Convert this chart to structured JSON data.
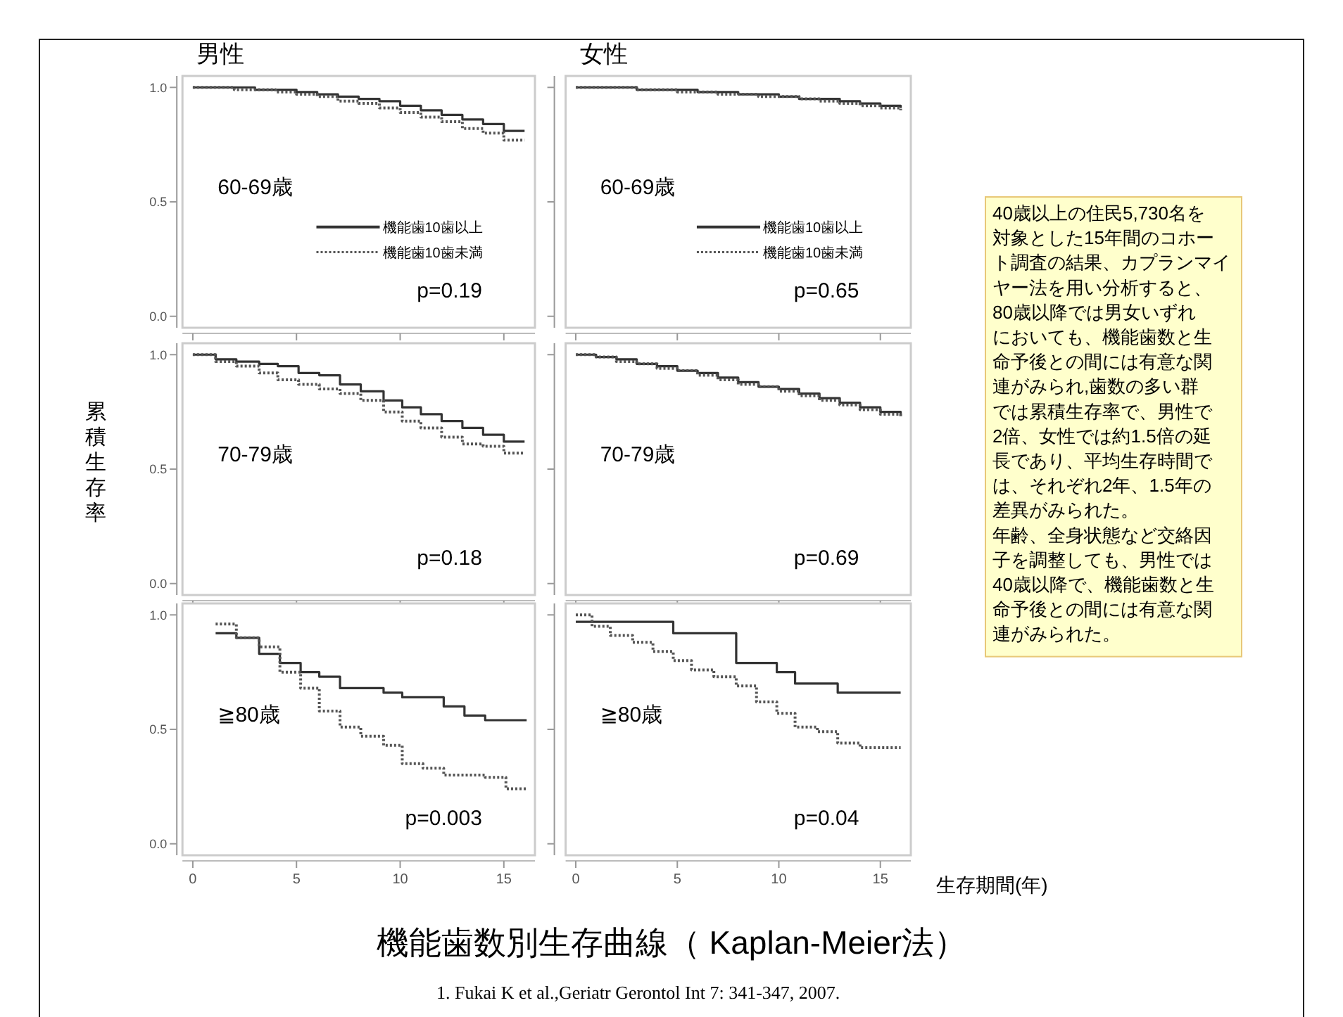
{
  "chart_data": [
    {
      "type": "step",
      "title": "男性",
      "xlim": [
        -0.5,
        16.5
      ],
      "ylim": [
        -0.05,
        1.05
      ],
      "xticks": [
        0,
        5,
        10,
        15
      ],
      "yticks": [
        {
          "value": 0,
          "label": "0.0"
        },
        {
          "value": 0.5,
          "label": "0.5"
        },
        {
          "value": 1,
          "label": "1.0"
        }
      ],
      "tick_labels": "y",
      "legend": "right",
      "annotations": [
        "60-69歳",
        "p=0.19"
      ],
      "series": [
        {
          "name": "機能歯10歯以上",
          "color": "#333333",
          "line_style": "solid",
          "x": [
            0,
            1,
            2,
            3,
            4,
            5,
            6,
            7,
            8,
            9,
            10,
            11,
            12,
            13,
            14,
            15,
            16
          ],
          "values": [
            1,
            1,
            1,
            0.99,
            0.99,
            0.98,
            0.97,
            0.96,
            0.95,
            0.94,
            0.92,
            0.9,
            0.88,
            0.86,
            0.84,
            0.81,
            0.81
          ]
        },
        {
          "name": "機能歯10歯未満",
          "color": "#555555",
          "line_style": "dotted",
          "x": [
            0,
            1,
            2,
            3,
            4,
            5,
            6,
            7,
            8,
            9,
            10,
            11,
            12,
            13,
            14,
            15,
            16
          ],
          "values": [
            1,
            1,
            0.99,
            0.99,
            0.98,
            0.97,
            0.96,
            0.94,
            0.93,
            0.91,
            0.89,
            0.87,
            0.85,
            0.82,
            0.8,
            0.77,
            0.77
          ]
        }
      ]
    },
    {
      "type": "step",
      "title": "女性",
      "xlim": [
        -0.5,
        16.5
      ],
      "ylim": [
        -0.05,
        1.05
      ],
      "xticks": [
        0,
        5,
        10,
        15
      ],
      "yticks": [
        0,
        0.5,
        1
      ],
      "tick_labels": false,
      "legend": "right",
      "annotations": [
        "60-69歳",
        "p=0.65"
      ],
      "series": [
        {
          "name": "機能歯10歯以上",
          "color": "#333333",
          "line_style": "solid",
          "x": [
            0,
            1,
            2,
            3,
            4,
            5,
            6,
            7,
            8,
            9,
            10,
            11,
            12,
            13,
            14,
            15,
            16
          ],
          "values": [
            1,
            1,
            1,
            0.99,
            0.99,
            0.99,
            0.98,
            0.98,
            0.97,
            0.97,
            0.96,
            0.95,
            0.95,
            0.94,
            0.93,
            0.92,
            0.91
          ]
        },
        {
          "name": "機能歯10歯未満",
          "color": "#555555",
          "line_style": "dotted",
          "x": [
            0,
            1,
            2,
            3,
            4,
            5,
            6,
            7,
            8,
            9,
            10,
            11,
            12,
            13,
            14,
            15,
            16
          ],
          "values": [
            1,
            1,
            1,
            0.99,
            0.99,
            0.98,
            0.98,
            0.97,
            0.97,
            0.96,
            0.96,
            0.95,
            0.94,
            0.93,
            0.92,
            0.91,
            0.9
          ]
        }
      ]
    },
    {
      "type": "step",
      "ylabel": "累積生存率",
      "xlim": [
        -0.5,
        16.5
      ],
      "ylim": [
        -0.05,
        1.05
      ],
      "xticks": [
        0,
        5,
        10,
        15
      ],
      "yticks": [
        {
          "value": 0,
          "label": "0.0"
        },
        {
          "value": 0.5,
          "label": "0.5"
        },
        {
          "value": 1,
          "label": "1.0"
        }
      ],
      "tick_labels": "y",
      "annotations": [
        "70-79歳",
        "p=0.18"
      ],
      "series": [
        {
          "color": "#333333",
          "line_style": "solid",
          "x": [
            0,
            1.1,
            2.1,
            3.2,
            4.1,
            5.1,
            6.1,
            7.1,
            8.1,
            9.2,
            10.1,
            11,
            12,
            13,
            14,
            15,
            16
          ],
          "values": [
            1,
            0.98,
            0.97,
            0.96,
            0.95,
            0.92,
            0.91,
            0.87,
            0.84,
            0.8,
            0.77,
            0.74,
            0.71,
            0.68,
            0.65,
            0.62,
            0.62
          ]
        },
        {
          "color": "#555555",
          "line_style": "dotted",
          "x": [
            0,
            1.1,
            2.1,
            3.2,
            4.1,
            5.1,
            6.1,
            7.1,
            8.1,
            9.2,
            10.1,
            11,
            12,
            13,
            14,
            15,
            16
          ],
          "values": [
            1,
            0.97,
            0.95,
            0.92,
            0.89,
            0.87,
            0.85,
            0.83,
            0.8,
            0.75,
            0.71,
            0.68,
            0.64,
            0.61,
            0.6,
            0.57,
            0.57
          ]
        }
      ]
    },
    {
      "type": "step",
      "xlim": [
        -0.5,
        16.5
      ],
      "ylim": [
        -0.05,
        1.05
      ],
      "xticks": [
        0,
        5,
        10,
        15
      ],
      "yticks": [
        0,
        0.5,
        1
      ],
      "tick_labels": false,
      "annotations": [
        "70-79歳",
        "p=0.69"
      ],
      "series": [
        {
          "color": "#333333",
          "line_style": "solid",
          "x": [
            0,
            1,
            2,
            3,
            4,
            5,
            6,
            7,
            8,
            9,
            10,
            11,
            12,
            13,
            14,
            15,
            16
          ],
          "values": [
            1,
            0.99,
            0.98,
            0.96,
            0.95,
            0.93,
            0.92,
            0.9,
            0.88,
            0.86,
            0.85,
            0.83,
            0.81,
            0.79,
            0.77,
            0.75,
            0.74
          ]
        },
        {
          "color": "#555555",
          "line_style": "dotted",
          "x": [
            0,
            1,
            2,
            3,
            4,
            5,
            6,
            7,
            8,
            9,
            10,
            11,
            12,
            13,
            14,
            15,
            16
          ],
          "values": [
            1,
            0.99,
            0.97,
            0.96,
            0.94,
            0.93,
            0.91,
            0.89,
            0.87,
            0.86,
            0.84,
            0.82,
            0.8,
            0.78,
            0.76,
            0.74,
            0.73
          ]
        }
      ]
    },
    {
      "type": "step",
      "xlim": [
        -0.5,
        16.5
      ],
      "ylim": [
        -0.05,
        1.05
      ],
      "xticks": [
        0,
        5,
        10,
        15
      ],
      "yticks": [
        {
          "value": 0,
          "label": "0.0"
        },
        {
          "value": 0.5,
          "label": "0.5"
        },
        {
          "value": 1,
          "label": "1.0"
        }
      ],
      "annotations": [
        "≧80歳",
        "p=0.003"
      ],
      "series": [
        {
          "color": "#333333",
          "line_style": "solid",
          "x": [
            1.1,
            2.1,
            3.2,
            4.2,
            5.2,
            6.1,
            7.1,
            9.2,
            10.1,
            12.1,
            13.1,
            14.1,
            16.1
          ],
          "values": [
            0.92,
            0.9,
            0.83,
            0.79,
            0.75,
            0.73,
            0.68,
            0.66,
            0.64,
            0.6,
            0.56,
            0.54,
            0.54
          ]
        },
        {
          "color": "#555555",
          "line_style": "dotted",
          "x": [
            1.1,
            2.1,
            3.2,
            4.2,
            5.2,
            6.1,
            7.1,
            8.1,
            9.2,
            10.1,
            11.1,
            12.1,
            14.1,
            15.1,
            16.1
          ],
          "values": [
            0.96,
            0.9,
            0.86,
            0.75,
            0.68,
            0.58,
            0.51,
            0.47,
            0.43,
            0.35,
            0.33,
            0.3,
            0.29,
            0.24,
            0.24
          ]
        }
      ]
    },
    {
      "type": "step",
      "xlabel": "生存期間(年)",
      "xlim": [
        -0.5,
        16.5
      ],
      "ylim": [
        -0.05,
        1.05
      ],
      "xticks": [
        0,
        5,
        10,
        15
      ],
      "yticks": [
        0,
        0.5,
        1
      ],
      "tick_labels": "x",
      "annotations": [
        "≧80歳",
        "p=0.04"
      ],
      "series": [
        {
          "color": "#333333",
          "line_style": "solid",
          "x": [
            0,
            4.8,
            7.9,
            9.9,
            10.8,
            12.9,
            16
          ],
          "values": [
            0.97,
            0.92,
            0.79,
            0.75,
            0.7,
            0.66,
            0.66
          ]
        },
        {
          "color": "#555555",
          "line_style": "dotted",
          "x": [
            0,
            0.8,
            1.7,
            2.8,
            3.8,
            4.8,
            5.7,
            6.8,
            7.9,
            8.9,
            9.9,
            10.8,
            11.9,
            12.9,
            14,
            16
          ],
          "values": [
            1,
            0.95,
            0.91,
            0.88,
            0.84,
            0.8,
            0.76,
            0.73,
            0.69,
            0.62,
            0.57,
            0.51,
            0.49,
            0.44,
            0.42,
            0.42
          ]
        }
      ]
    },
    {
      "type": "other",
      "title": "機能歯数別生存曲線（ Kaplan-Meier法）",
      "subtitle": "1.   Fukai K et al.,Geriatr Gerontol Int  7: 341-347, 2007.",
      "annotations": [
        "40歳以上の住民5,730名を",
        "対象とした15年間のコホー",
        "ト調査の結果、カプランマイ",
        "ヤー法を用い分析すると、",
        "80歳以降では男女いずれ",
        "においても、機能歯数と生",
        "命予後との間には有意な関",
        "連がみられ,歯数の多い群",
        "では累積生存率で、男性で",
        "2倍、女性では約1.5倍の延",
        "長であり、平均生存時間で",
        "は、それぞれ2年、1.5年の",
        "差異がみられた。",
        "年齢、全身状態など交絡因",
        "子を調整しても、男性では",
        "40歳以降で、機能歯数と生",
        "命予後との間には有意な関",
        "連がみられた。"
      ]
    }
  ]
}
